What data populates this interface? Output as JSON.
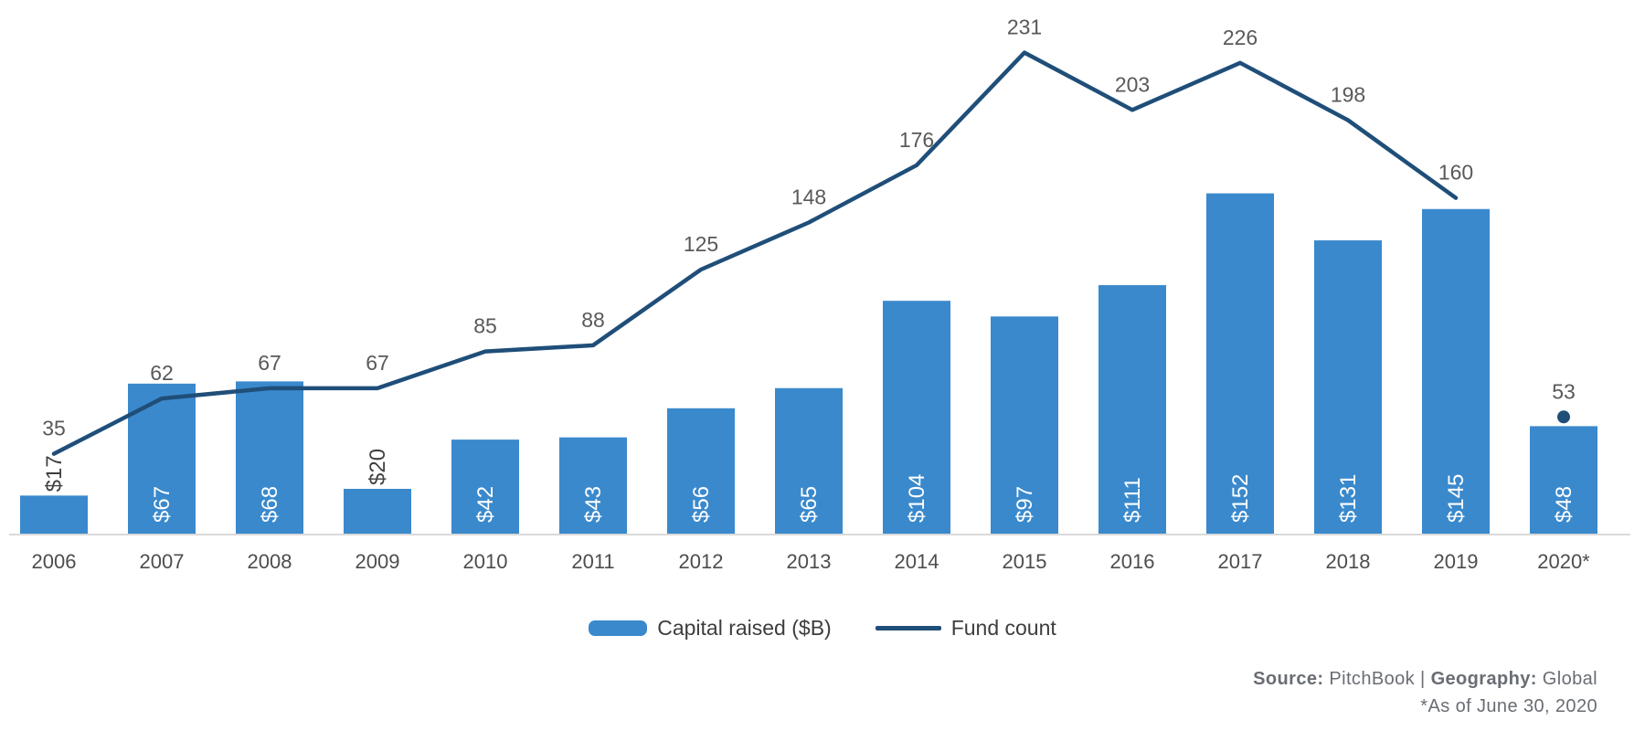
{
  "chart_data": {
    "type": "combo",
    "categories": [
      "2006",
      "2007",
      "2008",
      "2009",
      "2010",
      "2011",
      "2012",
      "2013",
      "2014",
      "2015",
      "2016",
      "2017",
      "2018",
      "2019",
      "2020*"
    ],
    "series": [
      {
        "name": "Capital raised ($B)",
        "type": "bar",
        "color": "#3A89CC",
        "values": [
          17,
          67,
          68,
          20,
          42,
          43,
          56,
          65,
          104,
          97,
          111,
          152,
          131,
          145,
          48
        ],
        "data_labels": [
          "$17",
          "$67",
          "$68",
          "$20",
          "$42",
          "$43",
          "$56",
          "$65",
          "$104",
          "$97",
          "$111",
          "$152",
          "$131",
          "$145",
          "$48"
        ],
        "label_inside_color": "#ffffff",
        "label_outside_color": "#404040",
        "outside_label_indices": [
          0,
          3
        ]
      },
      {
        "name": "Fund count",
        "type": "line",
        "color": "#1F4E79",
        "values": [
          35,
          62,
          67,
          67,
          85,
          88,
          125,
          148,
          176,
          231,
          203,
          226,
          198,
          160,
          53
        ],
        "data_labels": [
          "35",
          "62",
          "67",
          "67",
          "85",
          "88",
          "125",
          "148",
          "176",
          "231",
          "203",
          "226",
          "198",
          "160",
          "53"
        ],
        "line_connects_through_index": 13,
        "isolated_marker_index": 14
      }
    ],
    "xlabel": "",
    "ylabel": "",
    "y_axis_visible": false,
    "gridlines": false,
    "legend_position": "bottom"
  },
  "legend": {
    "items": [
      {
        "label": "Capital raised ($B)",
        "swatch": "bar-swatch",
        "color": "#3A89CC"
      },
      {
        "label": "Fund count",
        "swatch": "line-swatch",
        "color": "#1F4E79"
      }
    ]
  },
  "footer": {
    "source_label": "Source:",
    "source_value": "PitchBook |",
    "geography_label": "Geography:",
    "geography_value": "Global",
    "note": "*As of June 30, 2020"
  },
  "colors": {
    "bar": "#3A89CC",
    "line": "#1F4E79",
    "axis_line": "#D9D9D9",
    "count_label": "#595959",
    "year_label": "#4D4D4D",
    "footer_text": "#696D73"
  }
}
